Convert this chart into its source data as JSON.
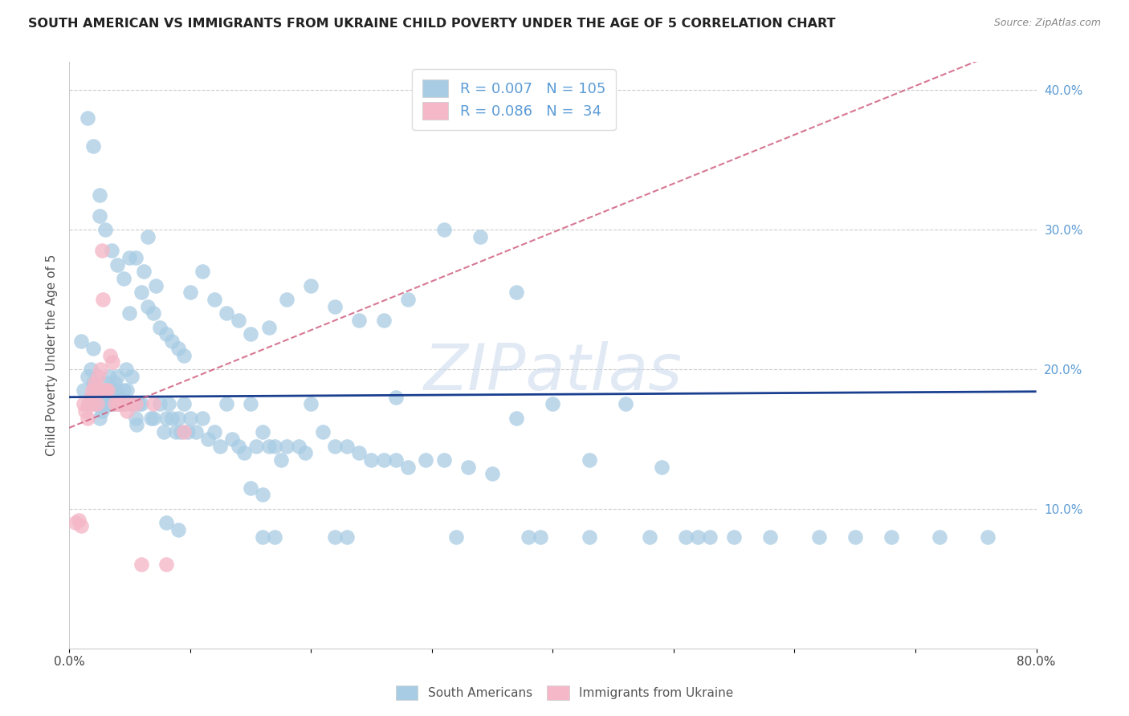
{
  "title": "SOUTH AMERICAN VS IMMIGRANTS FROM UKRAINE CHILD POVERTY UNDER THE AGE OF 5 CORRELATION CHART",
  "source": "Source: ZipAtlas.com",
  "ylabel": "Child Poverty Under the Age of 5",
  "xlim": [
    0.0,
    0.8
  ],
  "ylim": [
    0.0,
    0.42
  ],
  "color_blue": "#a8cce4",
  "color_pink": "#f4b8c8",
  "line_blue": "#1a3f8f",
  "line_pink": "#d06080",
  "watermark": "ZIPatlas",
  "south_americans_x": [
    0.01,
    0.012,
    0.015,
    0.016,
    0.018,
    0.018,
    0.02,
    0.02,
    0.021,
    0.022,
    0.023,
    0.024,
    0.025,
    0.025,
    0.026,
    0.027,
    0.028,
    0.029,
    0.03,
    0.03,
    0.031,
    0.032,
    0.033,
    0.034,
    0.035,
    0.036,
    0.037,
    0.038,
    0.039,
    0.04,
    0.041,
    0.042,
    0.043,
    0.045,
    0.046,
    0.047,
    0.048,
    0.05,
    0.051,
    0.052,
    0.053,
    0.055,
    0.056,
    0.058,
    0.06,
    0.062,
    0.065,
    0.068,
    0.07,
    0.072,
    0.075,
    0.078,
    0.08,
    0.082,
    0.085,
    0.088,
    0.09,
    0.092,
    0.095,
    0.098,
    0.1,
    0.105,
    0.11,
    0.115,
    0.12,
    0.125,
    0.13,
    0.135,
    0.14,
    0.145,
    0.15,
    0.155,
    0.16,
    0.165,
    0.17,
    0.175,
    0.18,
    0.19,
    0.195,
    0.2,
    0.21,
    0.22,
    0.23,
    0.24,
    0.25,
    0.26,
    0.27,
    0.28,
    0.295,
    0.31,
    0.33,
    0.35,
    0.37,
    0.4,
    0.43,
    0.46,
    0.49,
    0.52,
    0.55,
    0.58,
    0.62,
    0.65,
    0.68,
    0.72,
    0.76
  ],
  "south_americans_y": [
    0.22,
    0.185,
    0.195,
    0.175,
    0.2,
    0.18,
    0.215,
    0.19,
    0.175,
    0.185,
    0.195,
    0.175,
    0.185,
    0.165,
    0.175,
    0.17,
    0.175,
    0.18,
    0.185,
    0.175,
    0.19,
    0.175,
    0.195,
    0.185,
    0.175,
    0.185,
    0.175,
    0.19,
    0.185,
    0.195,
    0.175,
    0.18,
    0.175,
    0.185,
    0.175,
    0.2,
    0.185,
    0.28,
    0.175,
    0.195,
    0.175,
    0.165,
    0.16,
    0.175,
    0.175,
    0.27,
    0.295,
    0.165,
    0.165,
    0.26,
    0.175,
    0.155,
    0.165,
    0.175,
    0.165,
    0.155,
    0.165,
    0.155,
    0.175,
    0.155,
    0.165,
    0.155,
    0.165,
    0.15,
    0.155,
    0.145,
    0.175,
    0.15,
    0.145,
    0.14,
    0.175,
    0.145,
    0.155,
    0.145,
    0.145,
    0.135,
    0.145,
    0.145,
    0.14,
    0.175,
    0.155,
    0.145,
    0.145,
    0.14,
    0.135,
    0.135,
    0.135,
    0.13,
    0.135,
    0.135,
    0.13,
    0.125,
    0.165,
    0.175,
    0.135,
    0.175,
    0.13,
    0.08,
    0.08,
    0.08,
    0.08,
    0.08,
    0.08,
    0.08,
    0.08
  ],
  "south_americans_extra_x": [
    0.015,
    0.02,
    0.025,
    0.025,
    0.03,
    0.035,
    0.04,
    0.045,
    0.05,
    0.055,
    0.06,
    0.065,
    0.07,
    0.075,
    0.08,
    0.085,
    0.09,
    0.095,
    0.1,
    0.11,
    0.12,
    0.13,
    0.14,
    0.15,
    0.165,
    0.18,
    0.2,
    0.22,
    0.24,
    0.26,
    0.28,
    0.31,
    0.34,
    0.37,
    0.27,
    0.38,
    0.08,
    0.09,
    0.16,
    0.17,
    0.22,
    0.23,
    0.32,
    0.39,
    0.43,
    0.48,
    0.51,
    0.53,
    0.16,
    0.15
  ],
  "south_americans_extra_y": [
    0.38,
    0.36,
    0.325,
    0.31,
    0.3,
    0.285,
    0.275,
    0.265,
    0.24,
    0.28,
    0.255,
    0.245,
    0.24,
    0.23,
    0.225,
    0.22,
    0.215,
    0.21,
    0.255,
    0.27,
    0.25,
    0.24,
    0.235,
    0.225,
    0.23,
    0.25,
    0.26,
    0.245,
    0.235,
    0.235,
    0.25,
    0.3,
    0.295,
    0.255,
    0.18,
    0.08,
    0.09,
    0.085,
    0.08,
    0.08,
    0.08,
    0.08,
    0.08,
    0.08,
    0.08,
    0.08,
    0.08,
    0.08,
    0.11,
    0.115
  ],
  "ukraine_x": [
    0.005,
    0.008,
    0.01,
    0.012,
    0.013,
    0.015,
    0.016,
    0.018,
    0.019,
    0.02,
    0.021,
    0.022,
    0.023,
    0.024,
    0.025,
    0.026,
    0.027,
    0.028,
    0.029,
    0.03,
    0.032,
    0.034,
    0.036,
    0.038,
    0.04,
    0.042,
    0.045,
    0.048,
    0.052,
    0.055,
    0.06,
    0.07,
    0.08,
    0.095
  ],
  "ukraine_y": [
    0.09,
    0.092,
    0.088,
    0.175,
    0.17,
    0.165,
    0.175,
    0.18,
    0.185,
    0.175,
    0.19,
    0.185,
    0.175,
    0.195,
    0.185,
    0.2,
    0.285,
    0.25,
    0.185,
    0.185,
    0.185,
    0.21,
    0.205,
    0.175,
    0.175,
    0.175,
    0.175,
    0.17,
    0.175,
    0.175,
    0.06,
    0.175,
    0.06,
    0.155
  ]
}
